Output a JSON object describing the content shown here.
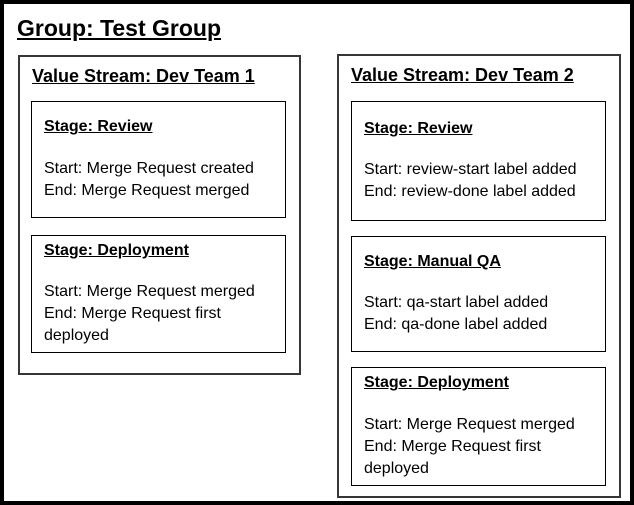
{
  "group": {
    "title": "Group: Test Group"
  },
  "value_streams": [
    {
      "title": "Value Stream: Dev Team 1",
      "stages": [
        {
          "title": "Stage: Review",
          "start": "Start: Merge Request created",
          "end": "End: Merge Request merged"
        },
        {
          "title": "Stage: Deployment",
          "start": "Start: Merge Request merged",
          "end": "End: Merge Request first deployed"
        }
      ]
    },
    {
      "title": "Value Stream: Dev Team 2",
      "stages": [
        {
          "title": "Stage: Review",
          "start": "Start: review-start label added",
          "end": "End: review-done label added"
        },
        {
          "title": "Stage: Manual QA",
          "start": "Start: qa-start label added",
          "end": "End: qa-done label added"
        },
        {
          "title": "Stage: Deployment",
          "start": "Start: Merge Request merged",
          "end": "End: Merge Request first deployed"
        }
      ]
    }
  ],
  "colors": {
    "background": "#ffffff",
    "text": "#000000",
    "outer_border": "#000000",
    "value_stream_border": "#363636",
    "stage_border": "#000000"
  }
}
